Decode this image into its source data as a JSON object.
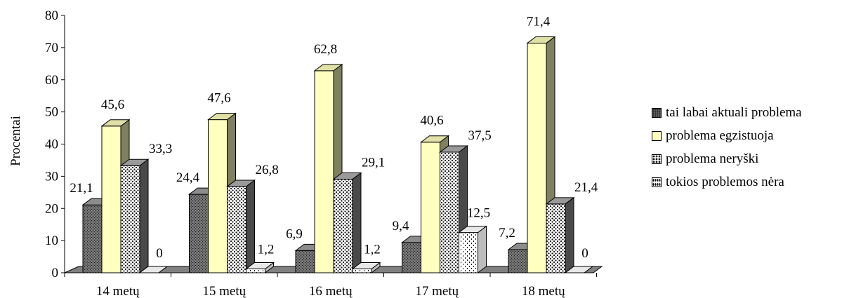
{
  "chart_data": {
    "type": "bar",
    "categories": [
      "14 metų",
      "15 metų",
      "16 metų",
      "17 metų",
      "18 metų"
    ],
    "series": [
      {
        "name": "tai labai aktuali problema",
        "values": [
          21.1,
          24.4,
          6.9,
          9.4,
          7.2
        ],
        "labels": [
          "21,1",
          "24,4",
          "6,9",
          "9,4",
          "7,2"
        ]
      },
      {
        "name": "problema egzistuoja",
        "values": [
          45.6,
          47.6,
          62.8,
          40.6,
          71.4
        ],
        "labels": [
          "45,6",
          "47,6",
          "62,8",
          "40,6",
          "71,4"
        ]
      },
      {
        "name": "problema neryški",
        "values": [
          33.3,
          26.8,
          29.1,
          37.5,
          21.4
        ],
        "labels": [
          "33,3",
          "26,8",
          "29,1",
          "37,5",
          "21,4"
        ]
      },
      {
        "name": "tokios problemos nėra",
        "values": [
          0,
          1.2,
          1.2,
          12.5,
          0
        ],
        "labels": [
          "0",
          "1,2",
          "1,2",
          "12,5",
          "0"
        ]
      }
    ],
    "ylabel": "Procentai",
    "xlabel": "",
    "ylim": [
      0,
      80
    ],
    "yticks": [
      "0",
      "10",
      "20",
      "30",
      "40",
      "50",
      "60",
      "70",
      "80"
    ],
    "legend_position": "right",
    "grid": false,
    "style": "3d-bar"
  }
}
